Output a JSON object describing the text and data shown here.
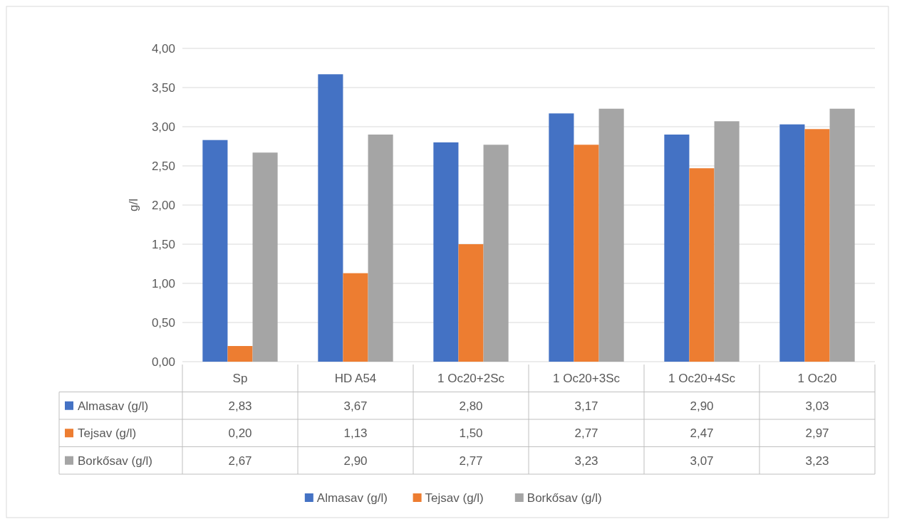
{
  "chart_data": {
    "type": "bar",
    "ylabel": "g/l",
    "categories": [
      "Sp",
      "HD A54",
      "1 Oc20+2Sc",
      "1 Oc20+3Sc",
      "1 Oc20+4Sc",
      "1 Oc20"
    ],
    "series": [
      {
        "name": "Almasav (g/l)",
        "color": "#4472c4",
        "values": [
          2.83,
          3.67,
          2.8,
          3.17,
          2.9,
          3.03
        ],
        "value_labels": [
          "2,83",
          "3,67",
          "2,80",
          "3,17",
          "2,90",
          "3,03"
        ]
      },
      {
        "name": "Tejsav (g/l)",
        "color": "#ed7d31",
        "values": [
          0.2,
          1.13,
          1.5,
          2.77,
          2.47,
          2.97
        ],
        "value_labels": [
          "0,20",
          "1,13",
          "1,50",
          "2,77",
          "2,47",
          "2,97"
        ]
      },
      {
        "name": "Borkősav (g/l)",
        "color": "#a5a5a5",
        "values": [
          2.67,
          2.9,
          2.77,
          3.23,
          3.07,
          3.23
        ],
        "value_labels": [
          "2,67",
          "2,90",
          "2,77",
          "3,23",
          "3,07",
          "3,23"
        ]
      }
    ],
    "ylim": [
      0,
      4
    ],
    "yticks": [
      {
        "value": 0,
        "label": "0,00"
      },
      {
        "value": 0.5,
        "label": "0,50"
      },
      {
        "value": 1,
        "label": "1,00"
      },
      {
        "value": 1.5,
        "label": "1,50"
      },
      {
        "value": 2,
        "label": "2,00"
      },
      {
        "value": 2.5,
        "label": "2,50"
      },
      {
        "value": 3,
        "label": "3,00"
      },
      {
        "value": 3.5,
        "label": "3,50"
      },
      {
        "value": 4,
        "label": "4,00"
      }
    ],
    "grid": "y",
    "legend": "bottom"
  }
}
